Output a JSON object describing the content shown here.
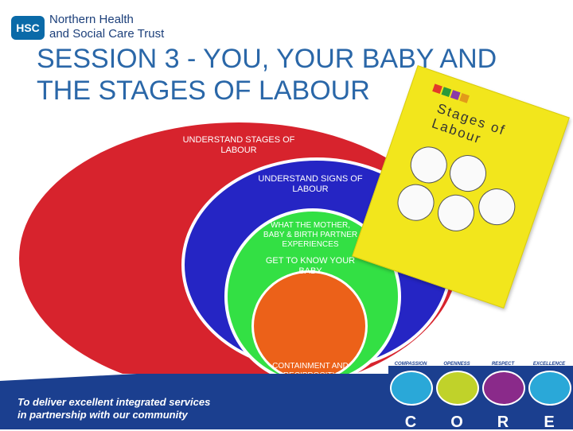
{
  "logo": {
    "badge": "HSC",
    "line1": "Northern Health",
    "line2": "and Social Care Trust"
  },
  "title": {
    "line1": "SESSION 3 -  YOU, YOUR BABY AND",
    "line2": "THE STAGES OF LABOUR"
  },
  "diagram": {
    "red_label": "UNDERSTAND STAGES OF LABOUR",
    "blue_label": "UNDERSTAND SIGNS OF LABOUR",
    "green_label_a": "WHAT THE MOTHER, BABY & BIRTH PARTNER EXPERIENCES",
    "green_label_b": "GET TO KNOW YOUR BABY",
    "orange_label": "CONTAINMENT AND RECIPROCITY"
  },
  "book": {
    "title": "Stages of Labour"
  },
  "footer": {
    "line1": "To deliver excellent integrated services",
    "line2": "in partnership with our community"
  },
  "core": {
    "values": [
      {
        "word": "COMPASSION",
        "letter": "C",
        "color": "#2aa8d8"
      },
      {
        "word": "OPENNESS",
        "letter": "O",
        "color": "#c0d22a"
      },
      {
        "word": "RESPECT",
        "letter": "R",
        "color": "#8a2a8a"
      },
      {
        "word": "EXCELLENCE",
        "letter": "E",
        "color": "#2aa8d8"
      }
    ]
  },
  "colors": {
    "title": "#2a67a8",
    "red": "#d7232d",
    "blue": "#2525c4",
    "green": "#33e044",
    "orange": "#ec6119",
    "footer": "#1b3f8f",
    "book": "#f2e61c"
  }
}
